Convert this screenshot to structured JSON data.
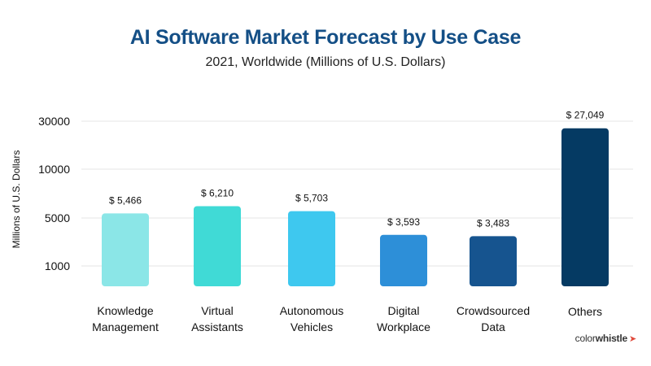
{
  "chart_data": {
    "type": "bar",
    "title": "AI Software Market Forecast by Use Case",
    "subtitle": "2021, Worldwide (Millions of U.S. Dollars)",
    "xlabel": "",
    "ylabel": "Millions of U.S. Dollars",
    "yticks": [
      "30000",
      "10000",
      "5000",
      "1000"
    ],
    "grid": true,
    "categories": [
      [
        "Knowledge",
        "Management"
      ],
      [
        "Virtual",
        "Assistants"
      ],
      [
        "Autonomous",
        "Vehicles"
      ],
      [
        "Digital",
        "Workplace"
      ],
      [
        "Crowdsourced",
        "Data"
      ],
      [
        "Others"
      ]
    ],
    "values": [
      5466,
      6210,
      5703,
      3593,
      3483,
      27049
    ],
    "data_labels": [
      "$ 5,466",
      "$ 6,210",
      "$ 5,703",
      "$ 3,593",
      "$ 3,483",
      "$ 27,049"
    ],
    "colors": [
      "#8be6e7",
      "#40dad6",
      "#3ec8ef",
      "#2d8fd8",
      "#16548f",
      "#053a63"
    ]
  },
  "colors": {
    "title": "#144f86",
    "grid": "#e6e6e6"
  },
  "brand": {
    "part1": "color",
    "part2": "whistle",
    "icon": "whistle-icon"
  }
}
